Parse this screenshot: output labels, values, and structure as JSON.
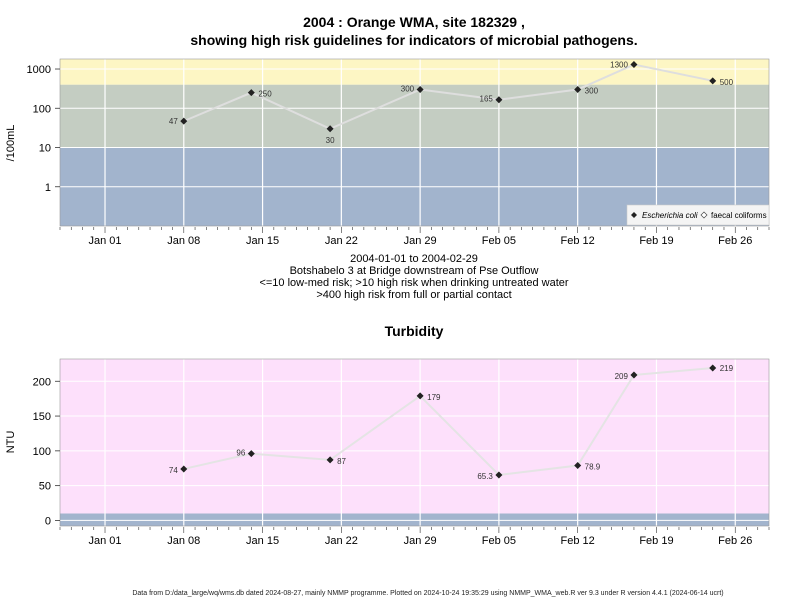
{
  "chart_data": [
    {
      "type": "line",
      "title_line1": "2004 : Orange WMA, site 182329 ,",
      "title_line2": "showing high risk guidelines for indicators of microbial pathogens.",
      "ylabel": "/100mL",
      "y_scale": "log",
      "ylim": [
        0.1,
        1800
      ],
      "y_ticks": [
        {
          "value": 1,
          "label": "1"
        },
        {
          "value": 10,
          "label": "10"
        },
        {
          "value": 100,
          "label": "100"
        },
        {
          "value": 1000,
          "label": "1000"
        }
      ],
      "x_ticks": [
        "Jan 01",
        "Jan 08",
        "Jan 15",
        "Jan 22",
        "Jan 29",
        "Feb 05",
        "Feb 12",
        "Feb 19",
        "Feb 26"
      ],
      "bands": [
        {
          "from": 0.1,
          "to": 10,
          "color": "#a2b4cd"
        },
        {
          "from": 10,
          "to": 400,
          "color": "#c4cdc2"
        },
        {
          "from": 400,
          "to": 1800,
          "color": "#fdf6c4"
        }
      ],
      "series": [
        {
          "name": "Escherichia coli",
          "line_color": "#dedede",
          "points": [
            {
              "day": 7,
              "value": 47,
              "label": "47"
            },
            {
              "day": 13,
              "value": 250,
              "label": "250"
            },
            {
              "day": 20,
              "value": 30,
              "label": "30"
            },
            {
              "day": 28,
              "value": 300,
              "label": "300"
            },
            {
              "day": 35,
              "value": 165,
              "label": "165"
            },
            {
              "day": 42,
              "value": 300,
              "label": "300"
            },
            {
              "day": 47,
              "value": 1300,
              "label": "1300"
            },
            {
              "day": 54,
              "value": 500,
              "label": "500"
            }
          ]
        }
      ],
      "legend": [
        {
          "marker": "filled-diamond",
          "label": "Escherichia coli"
        },
        {
          "marker": "open-diamond",
          "label": "faecal coliforms"
        }
      ],
      "caption": [
        "2004-01-01 to 2004-02-29",
        "Botshabelo 3 at Bridge downstream of Pse Outflow",
        "<=10 low-med risk; >10 high risk when drinking untreated water",
        ">400 high risk from full or partial contact"
      ]
    },
    {
      "type": "line",
      "title": "Turbidity",
      "ylabel": "NTU",
      "ylim": [
        -8,
        232
      ],
      "y_ticks": [
        {
          "value": 0,
          "label": "0"
        },
        {
          "value": 50,
          "label": "50"
        },
        {
          "value": 100,
          "label": "100"
        },
        {
          "value": 150,
          "label": "150"
        },
        {
          "value": 200,
          "label": "200"
        }
      ],
      "x_ticks": [
        "Jan 01",
        "Jan 08",
        "Jan 15",
        "Jan 22",
        "Jan 29",
        "Feb 05",
        "Feb 12",
        "Feb 19",
        "Feb 26"
      ],
      "bands": [
        {
          "from": -8,
          "to": 10,
          "color": "#a2b4cd"
        },
        {
          "from": 10,
          "to": 232,
          "color": "#fde0fb"
        }
      ],
      "series": [
        {
          "line_color": "#e4e4e4",
          "points": [
            {
              "day": 7,
              "value": 74,
              "label": "74"
            },
            {
              "day": 13,
              "value": 96,
              "label": "96"
            },
            {
              "day": 20,
              "value": 87,
              "label": "87"
            },
            {
              "day": 28,
              "value": 179,
              "label": "179"
            },
            {
              "day": 35,
              "value": 65.3,
              "label": "65.3"
            },
            {
              "day": 42,
              "value": 78.9,
              "label": "78.9"
            },
            {
              "day": 47,
              "value": 209,
              "label": "209"
            },
            {
              "day": 54,
              "value": 219,
              "label": "219"
            }
          ]
        }
      ]
    }
  ],
  "footer": "Data from D:/data_large/wq/wms.db dated 2024-08-27, mainly NMMP programme. Plotted on 2024-10-24 19:35:29 using NMMP_WMA_web.R ver 9.3 under R version 4.4.1 (2024-06-14 ucrt)"
}
